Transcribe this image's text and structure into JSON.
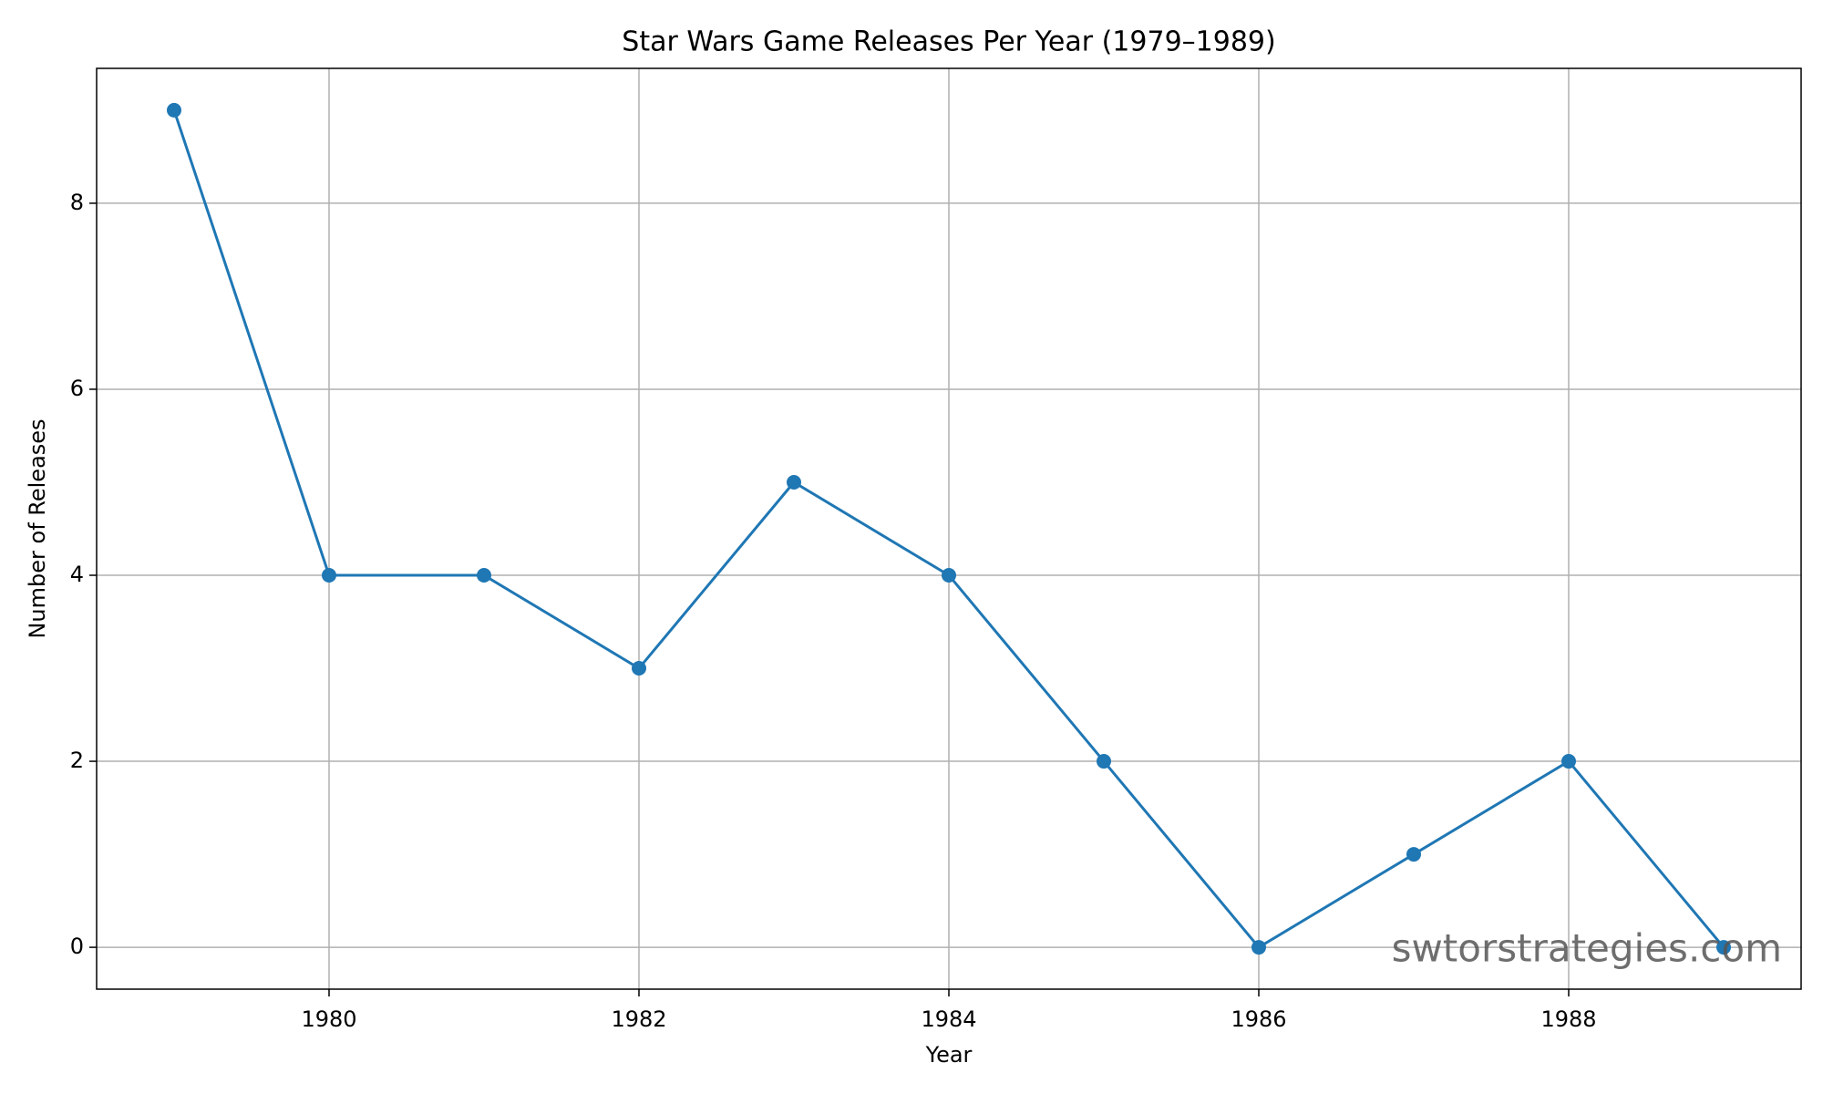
{
  "chart_data": {
    "type": "line",
    "title": "Star Wars Game Releases Per Year (1979–1989)",
    "x_label": "Year",
    "y_label": "Number of Releases",
    "x": [
      1979,
      1980,
      1981,
      1982,
      1983,
      1984,
      1985,
      1986,
      1987,
      1988,
      1989
    ],
    "series": [
      {
        "name": "Releases",
        "color": "#1f77b4",
        "values": [
          9,
          4,
          4,
          3,
          5,
          4,
          2,
          0,
          1,
          2,
          0
        ]
      }
    ],
    "xlim": [
      1978.5,
      1989.5
    ],
    "xticks": [
      1980,
      1982,
      1984,
      1986,
      1988
    ],
    "ylim": [
      -0.45,
      9.45
    ],
    "yticks": [
      0,
      2,
      4,
      6,
      8
    ],
    "grid": true,
    "watermark": "swtorstrategies.com"
  }
}
